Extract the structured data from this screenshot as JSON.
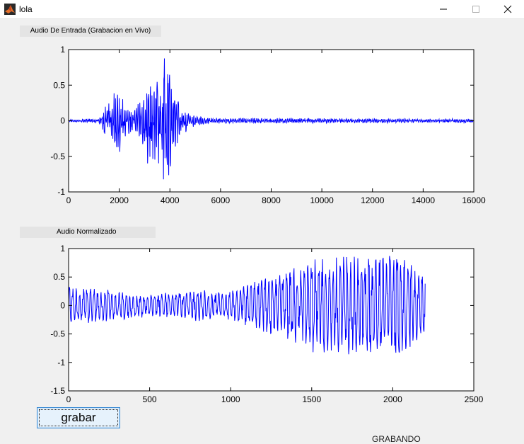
{
  "window": {
    "title": "lola",
    "minimize_glyph": "—",
    "maximize_glyph": "☐",
    "close_glyph": "✕",
    "icon": "matlab-icon"
  },
  "panels": {
    "input_label": "Audio De Entrada (Grabacion en Vivo)",
    "normalized_label": "Audio Normalizado"
  },
  "controls": {
    "record_label": "grabar"
  },
  "footer": {
    "cut_text": "GRABANDO"
  },
  "colors": {
    "signal": "#0000ff",
    "axes": "#000000",
    "plot_bg": "#ffffff",
    "window_bg": "#f0f0f0"
  },
  "chart_data": [
    {
      "type": "line",
      "x_ticks": [
        0,
        2000,
        4000,
        6000,
        8000,
        10000,
        12000,
        14000,
        16000
      ],
      "x_tick_labels": [
        "0",
        "2000",
        "4000",
        "6000",
        "8000",
        "10000",
        "12000",
        "14000",
        "16000"
      ],
      "y_ticks": [
        -1,
        -0.5,
        0,
        0.5,
        1
      ],
      "y_tick_labels": [
        "-1",
        "-0.5",
        "0",
        "0.5",
        "1"
      ],
      "xlim": [
        0,
        16000
      ],
      "ylim": [
        -1,
        1
      ],
      "grid": false,
      "series": [
        {
          "envelope": [
            [
              0,
              0.02
            ],
            [
              1200,
              0.03
            ],
            [
              1500,
              0.25
            ],
            [
              1800,
              0.42
            ],
            [
              2000,
              0.5
            ],
            [
              2200,
              0.25
            ],
            [
              2600,
              0.15
            ],
            [
              3000,
              0.55
            ],
            [
              3400,
              0.8
            ],
            [
              3700,
              1.0
            ],
            [
              3900,
              1.0
            ],
            [
              4100,
              0.55
            ],
            [
              4500,
              0.2
            ],
            [
              5000,
              0.08
            ],
            [
              5500,
              0.04
            ],
            [
              16000,
              0.03
            ]
          ]
        }
      ]
    },
    {
      "type": "line",
      "x_ticks": [
        0,
        500,
        1000,
        1500,
        2000,
        2500
      ],
      "x_tick_labels": [
        "0",
        "500",
        "1000",
        "1500",
        "2000",
        "2500"
      ],
      "y_ticks": [
        -1.5,
        -1,
        -0.5,
        0,
        0.5,
        1
      ],
      "y_tick_labels": [
        "-1.5",
        "-1",
        "-0.5",
        "0",
        "0.5",
        "1"
      ],
      "xlim": [
        0,
        2500
      ],
      "ylim": [
        -1.5,
        1
      ],
      "grid": false,
      "series": [
        {
          "envelope": [
            [
              0,
              0.35
            ],
            [
              200,
              0.3
            ],
            [
              500,
              0.2
            ],
            [
              800,
              0.28
            ],
            [
              1000,
              0.25
            ],
            [
              1150,
              0.45
            ],
            [
              1300,
              0.6
            ],
            [
              1500,
              0.85
            ],
            [
              1700,
              0.9
            ],
            [
              1900,
              0.95
            ],
            [
              2050,
              1.0
            ],
            [
              2200,
              0.55
            ]
          ],
          "end_x": 2200
        }
      ]
    }
  ]
}
